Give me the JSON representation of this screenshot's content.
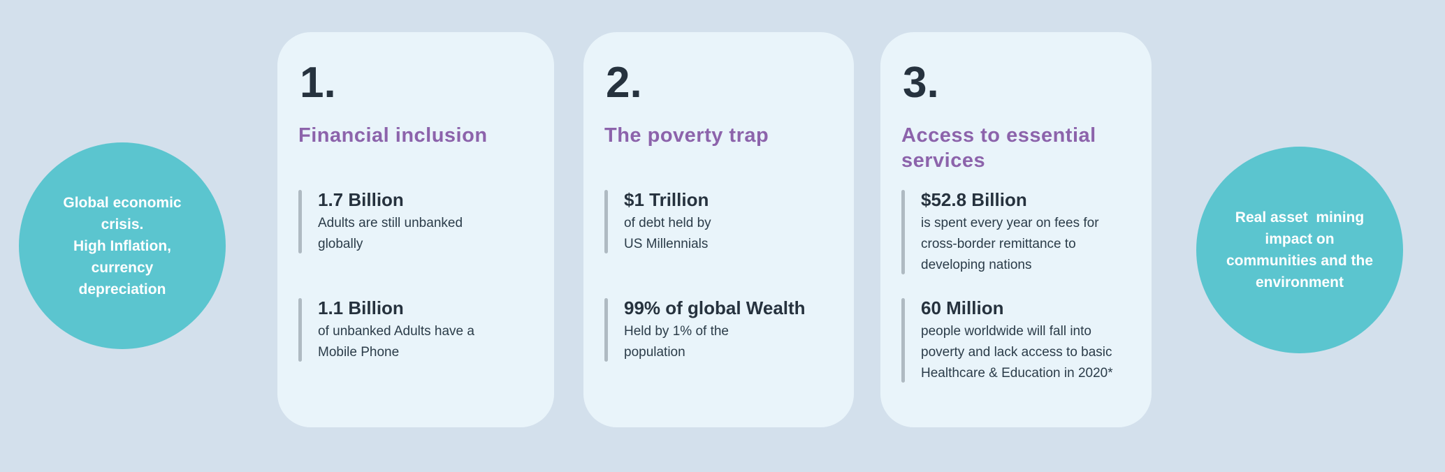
{
  "colors": {
    "background": "#D3E0EC",
    "card_background": "#E9F4FA",
    "circle_teal": "#5BC5CF",
    "heading_purple": "#8C63AB",
    "text_navy": "#26323E",
    "stat_bar_gray": "#AFBAC2",
    "circle_text_white": "#FFFFFF"
  },
  "circles": {
    "left": {
      "text": "Global economic\ncrisis.\nHigh Inflation,\ncurrency\ndepreciation"
    },
    "right": {
      "text": "Real asset  mining\nimpact on\ncommunities and the\nenvironment"
    }
  },
  "cards": [
    {
      "number": "1.",
      "heading": "Financial inclusion",
      "stats": [
        {
          "value": "1.7 Billion",
          "desc": "Adults are still unbanked\nglobally"
        },
        {
          "value": "1.1 Billion",
          "desc": "of unbanked Adults have a\nMobile Phone"
        }
      ]
    },
    {
      "number": "2.",
      "heading": "The poverty trap",
      "stats": [
        {
          "value": "$1 Trillion",
          "desc": "of debt held by\nUS Millennials"
        },
        {
          "value": "99% of global Wealth",
          "desc": "Held by 1% of the\npopulation"
        }
      ]
    },
    {
      "number": "3.",
      "heading": "Access to essential\nservices",
      "stats": [
        {
          "value": "$52.8 Billion",
          "desc": "is spent every year on fees for\ncross-border remittance to\ndeveloping nations"
        },
        {
          "value": "60 Million",
          "desc": "people worldwide will fall into\npoverty and lack access to basic\nHealthcare & Education in 2020*"
        }
      ]
    }
  ]
}
